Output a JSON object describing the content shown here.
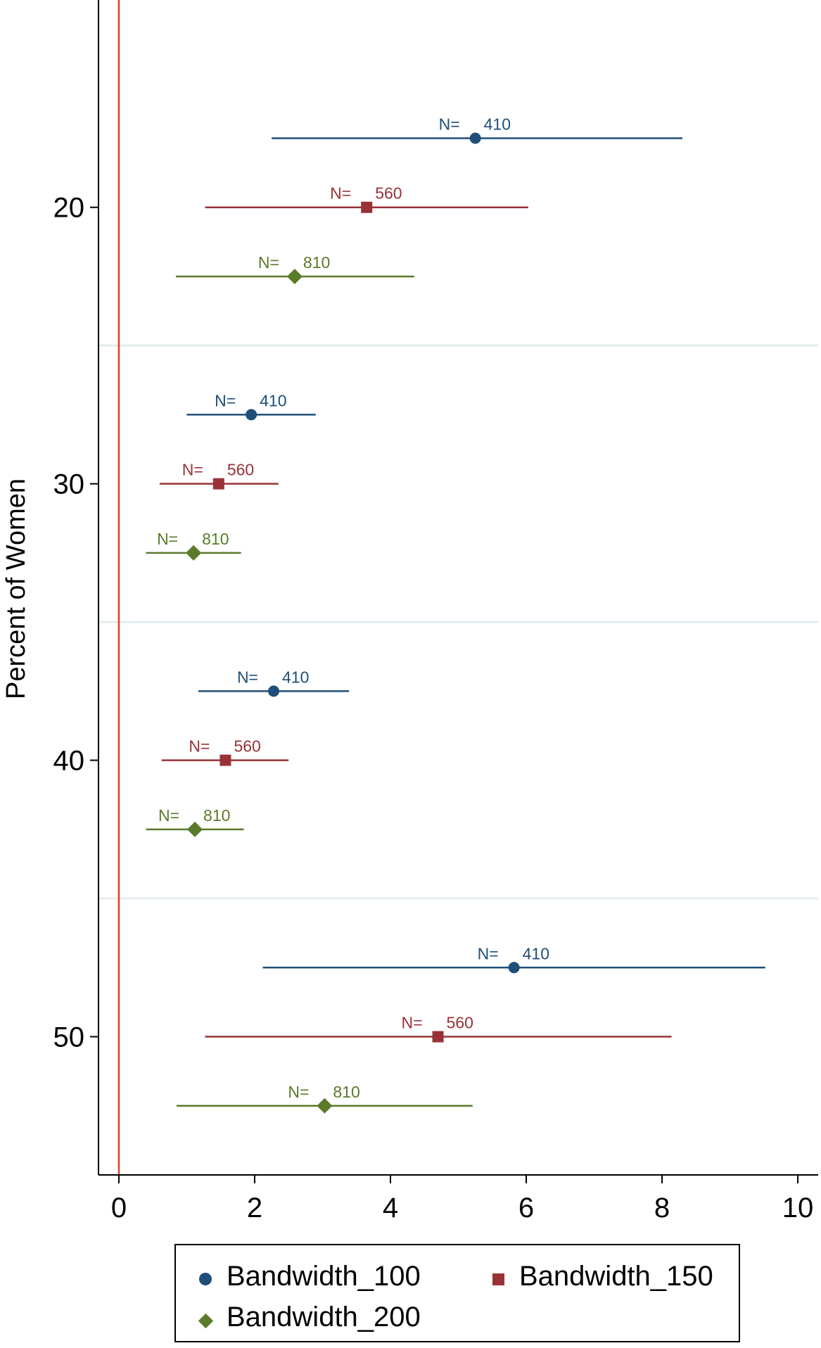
{
  "chart_data": {
    "type": "scatter",
    "subtype": "coefficient plot with horizontal confidence intervals",
    "ylabel": "Percent of Women",
    "xlabel": "",
    "xlim": [
      -0.3,
      10.3
    ],
    "ylim": [
      12.5,
      55
    ],
    "xticks": [
      0,
      2,
      4,
      6,
      8,
      10
    ],
    "yticks": [
      20,
      30,
      40,
      50
    ],
    "reference_line": {
      "x": 0,
      "color": "#e8392f"
    },
    "group_separators": [
      25,
      35,
      45
    ],
    "grid": false,
    "legend_position": "bottom",
    "series": [
      {
        "name": "Bandwidth_100",
        "color": "#1f4e79",
        "marker": "circle",
        "points": [
          {
            "y": 17.5,
            "x": 5.25,
            "low": 2.25,
            "high": 8.3,
            "label_prefix": "N=",
            "label_value": "410"
          },
          {
            "y": 27.5,
            "x": 1.95,
            "low": 1.0,
            "high": 2.9,
            "label_prefix": "N=",
            "label_value": "410"
          },
          {
            "y": 37.5,
            "x": 2.28,
            "low": 1.17,
            "high": 3.39,
            "label_prefix": "N=",
            "label_value": "410"
          },
          {
            "y": 47.5,
            "x": 5.82,
            "low": 2.12,
            "high": 9.52,
            "label_prefix": "N=",
            "label_value": "410"
          }
        ]
      },
      {
        "name": "Bandwidth_150",
        "color": "#983237",
        "marker": "square",
        "points": [
          {
            "y": 20,
            "x": 3.65,
            "low": 1.27,
            "high": 6.03,
            "label_prefix": "N=",
            "label_value": "560"
          },
          {
            "y": 30,
            "x": 1.47,
            "low": 0.6,
            "high": 2.35,
            "label_prefix": "N=",
            "label_value": "560"
          },
          {
            "y": 40,
            "x": 1.57,
            "low": 0.63,
            "high": 2.5,
            "label_prefix": "N=",
            "label_value": "560"
          },
          {
            "y": 50,
            "x": 4.7,
            "low": 1.27,
            "high": 8.14,
            "label_prefix": "N=",
            "label_value": "560"
          }
        ]
      },
      {
        "name": "Bandwidth_200",
        "color": "#5b7a2a",
        "marker": "diamond",
        "points": [
          {
            "y": 22.5,
            "x": 2.59,
            "low": 0.84,
            "high": 4.35,
            "label_prefix": "N=",
            "label_value": "810"
          },
          {
            "y": 32.5,
            "x": 1.1,
            "low": 0.4,
            "high": 1.8,
            "label_prefix": "N=",
            "label_value": "810"
          },
          {
            "y": 42.5,
            "x": 1.12,
            "low": 0.4,
            "high": 1.84,
            "label_prefix": "N=",
            "label_value": "810"
          },
          {
            "y": 52.5,
            "x": 3.03,
            "low": 0.85,
            "high": 5.21,
            "label_prefix": "N=",
            "label_value": "810"
          }
        ]
      }
    ]
  },
  "legend": {
    "items": [
      {
        "label": "Bandwidth_100",
        "color": "#1f4e79",
        "marker": "circle"
      },
      {
        "label": "Bandwidth_150",
        "color": "#983237",
        "marker": "square"
      },
      {
        "label": "Bandwidth_200",
        "color": "#5b7a2a",
        "marker": "diamond"
      }
    ]
  }
}
